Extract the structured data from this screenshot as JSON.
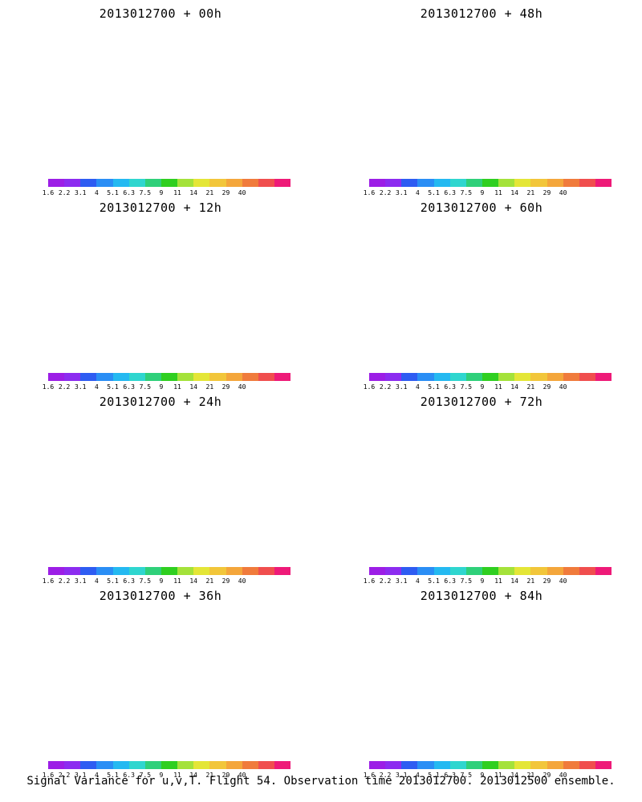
{
  "footer_caption": "Signal Variance for u,v,T. Flight 54. Observation time 2013012700. 2013012500 ensemble.",
  "colorbar": {
    "labels": [
      "1.6",
      "2.2",
      "3.1",
      "4",
      "5.1",
      "6.3",
      "7.5",
      "9",
      "11",
      "14",
      "21",
      "29",
      "40"
    ],
    "colors": [
      "#9c1ee6",
      "#8c2cf0",
      "#2e5cf2",
      "#2a8ef5",
      "#24b9f1",
      "#2fd6cf",
      "#2fd07a",
      "#2fcf20",
      "#a4e23a",
      "#e4e637",
      "#f2c63a",
      "#f4a63b",
      "#f07b3c",
      "#f04e4e",
      "#ee1a78"
    ]
  },
  "panels": [
    {
      "title": "2013012700 + 00h",
      "intensity": 0.1
    },
    {
      "title": "2013012700 + 48h",
      "intensity": 0.55
    },
    {
      "title": "2013012700 + 12h",
      "intensity": 0.25
    },
    {
      "title": "2013012700 + 60h",
      "intensity": 0.65
    },
    {
      "title": "2013012700 + 24h",
      "intensity": 0.35
    },
    {
      "title": "2013012700 + 72h",
      "intensity": 0.75
    },
    {
      "title": "2013012700 + 36h",
      "intensity": 0.45
    },
    {
      "title": "2013012700 + 84h",
      "intensity": 0.85
    }
  ]
}
